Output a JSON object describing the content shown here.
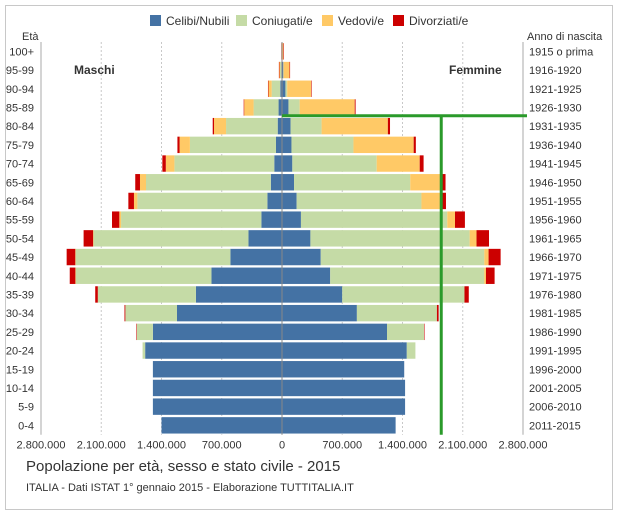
{
  "chart_data": {
    "type": "bar",
    "orientation": "horizontal-pyramid",
    "header_left": "Età",
    "header_right": "Anno di nascita",
    "left_label": "Maschi",
    "right_label": "Femmine",
    "title": "Popolazione per età, sesso e stato civile - 2015",
    "subtitle": "ITALIA - Dati ISTAT 1° gennaio 2015 - Elaborazione TUTTITALIA.IT",
    "legend_position": "top",
    "series_names": [
      "Celibi/Nubili",
      "Coniugati/e",
      "Vedovi/e",
      "Divorziati/e"
    ],
    "series_colors": [
      "#4472a4",
      "#c5dba6",
      "#ffc966",
      "#cc0000"
    ],
    "x_ticks": [
      "2.800.000",
      "2.100.000",
      "1.400.000",
      "700.000",
      "0",
      "700.000",
      "1.400.000",
      "2.100.000",
      "2.800.000"
    ],
    "xlim": [
      -2800000,
      2800000
    ],
    "grid": true,
    "reference_line_value": 1850000,
    "reference_line_age_class": "85-89",
    "reference_line_color": "#2a9a2a",
    "categories": [
      "100+",
      "95-99",
      "90-94",
      "85-89",
      "80-84",
      "75-79",
      "70-74",
      "65-69",
      "60-64",
      "55-59",
      "50-54",
      "45-49",
      "40-44",
      "35-39",
      "30-34",
      "25-29",
      "20-24",
      "15-19",
      "10-14",
      "5-9",
      "0-4"
    ],
    "birth_years": [
      "1915 o prima",
      "1916-1920",
      "1921-1925",
      "1926-1930",
      "1931-1935",
      "1936-1940",
      "1941-1945",
      "1946-1950",
      "1951-1955",
      "1956-1960",
      "1961-1965",
      "1966-1970",
      "1971-1975",
      "1976-1980",
      "1981-1985",
      "1986-1990",
      "1991-1995",
      "1996-2000",
      "2001-2005",
      "2006-2010",
      "2011-2015"
    ],
    "males": {
      "Celibi/Nubili": [
        2000,
        8000,
        20000,
        40000,
        50000,
        70000,
        90000,
        130000,
        170000,
        240000,
        390000,
        600000,
        820000,
        1000000,
        1220000,
        1500000,
        1590000,
        1500000,
        1500000,
        1500000,
        1400000
      ],
      "Coniugati/e": [
        2000,
        15000,
        100000,
        290000,
        600000,
        1000000,
        1160000,
        1450000,
        1510000,
        1630000,
        1800000,
        1800000,
        1580000,
        1140000,
        600000,
        190000,
        30000,
        0,
        0,
        0,
        0
      ],
      "Vedovi/e": [
        3000,
        12000,
        40000,
        110000,
        140000,
        120000,
        100000,
        70000,
        40000,
        20000,
        5000,
        2000,
        1000,
        0,
        0,
        0,
        0,
        0,
        0,
        0,
        0
      ],
      "Divorziati/e": [
        500,
        1000,
        3000,
        5000,
        15000,
        25000,
        40000,
        55000,
        65000,
        85000,
        110000,
        100000,
        65000,
        30000,
        10000,
        2000,
        0,
        0,
        0,
        0,
        0
      ]
    },
    "females": {
      "Celibi/Nubili": [
        3000,
        15000,
        40000,
        75000,
        100000,
        110000,
        120000,
        140000,
        170000,
        220000,
        330000,
        450000,
        560000,
        700000,
        870000,
        1220000,
        1450000,
        1420000,
        1430000,
        1430000,
        1320000
      ],
      "Coniugati/e": [
        1000,
        3000,
        20000,
        130000,
        360000,
        720000,
        980000,
        1350000,
        1450000,
        1700000,
        1850000,
        1900000,
        1790000,
        1420000,
        930000,
        430000,
        100000,
        0,
        0,
        0,
        0
      ],
      "Vedovi/e": [
        12000,
        70000,
        280000,
        640000,
        770000,
        700000,
        500000,
        350000,
        220000,
        90000,
        80000,
        50000,
        20000,
        0,
        0,
        0,
        0,
        0,
        0,
        0,
        0
      ],
      "Divorziati/e": [
        1000,
        2000,
        5000,
        10000,
        25000,
        25000,
        45000,
        60000,
        65000,
        115000,
        145000,
        140000,
        100000,
        50000,
        20000,
        5000,
        0,
        0,
        0,
        0,
        0
      ]
    }
  }
}
